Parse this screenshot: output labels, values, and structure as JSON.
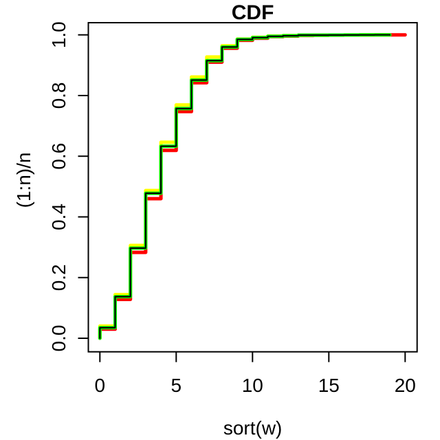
{
  "chart_data": {
    "type": "line",
    "subtype": "step-cdf",
    "title": "CDF",
    "xlabel": "sort(w)",
    "ylabel": "(1:n)/n",
    "xlim": [
      0,
      20
    ],
    "ylim": [
      0,
      1
    ],
    "grid": false,
    "legend": null,
    "step_style": "horizontal-then-vertical",
    "start_y": 0.0,
    "x_ticks": {
      "values": [
        0,
        5,
        10,
        15,
        20
      ],
      "labels": [
        "0",
        "5",
        "10",
        "15",
        "20"
      ]
    },
    "y_ticks": {
      "values": [
        0,
        0.2,
        0.4,
        0.6,
        0.8,
        1.0
      ],
      "labels": [
        "0.0",
        "0.2",
        "0.4",
        "0.6",
        "0.8",
        "1.0"
      ]
    },
    "series": [
      {
        "name": "red",
        "color": "#FF0000",
        "line_width": 5,
        "x": [
          0,
          1,
          2,
          3,
          4,
          5,
          6,
          7,
          8,
          9,
          10,
          11,
          12,
          13,
          14,
          15,
          16,
          17,
          18,
          19,
          20
        ],
        "y": [
          0.03,
          0.128,
          0.283,
          0.46,
          0.619,
          0.747,
          0.842,
          0.91,
          0.956,
          0.982,
          0.989,
          0.994,
          0.996,
          0.998,
          0.9986,
          0.999,
          0.9993,
          0.9995,
          0.9997,
          0.9999,
          1.0
        ]
      },
      {
        "name": "yellow",
        "color": "#FFFF00",
        "line_width": 5,
        "x": [
          0,
          1,
          2,
          3,
          4,
          5,
          6,
          7,
          8,
          9,
          10,
          11,
          12,
          13,
          14,
          15,
          16,
          17,
          18,
          19
        ],
        "y": [
          0.04,
          0.144,
          0.306,
          0.487,
          0.646,
          0.769,
          0.861,
          0.927,
          0.964,
          0.986,
          0.992,
          0.996,
          0.9975,
          0.999,
          0.9992,
          0.9994,
          0.9996,
          0.9997,
          0.9999,
          1.0
        ]
      },
      {
        "name": "green",
        "color": "#00FF00",
        "line_width": 5,
        "x": [
          0,
          1,
          2,
          3,
          4,
          5,
          6,
          7,
          8,
          9,
          10,
          11,
          12,
          13,
          14,
          15,
          16,
          17,
          18,
          19
        ],
        "y": [
          0.035,
          0.137,
          0.297,
          0.478,
          0.633,
          0.757,
          0.851,
          0.915,
          0.96,
          0.985,
          0.991,
          0.995,
          0.997,
          0.999,
          0.9992,
          0.9994,
          0.9996,
          0.9997,
          0.9999,
          1.0
        ]
      },
      {
        "name": "black",
        "color": "#000000",
        "line_width": 2.2,
        "x": [
          0,
          1,
          2,
          3,
          4,
          5,
          6,
          7,
          8,
          9,
          10,
          11,
          12,
          13,
          14,
          15,
          16,
          17,
          18,
          19
        ],
        "y": [
          0.035,
          0.137,
          0.297,
          0.478,
          0.633,
          0.757,
          0.851,
          0.915,
          0.96,
          0.985,
          0.991,
          0.995,
          0.997,
          0.999,
          0.9992,
          0.9994,
          0.9996,
          0.9997,
          0.9999,
          1.0
        ]
      }
    ]
  }
}
